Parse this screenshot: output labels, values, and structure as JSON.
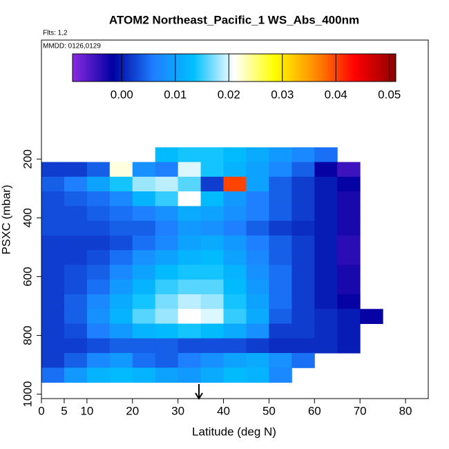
{
  "chart_data": {
    "type": "heatmap",
    "title": "ATOM2 Northeast_Pacific_1 WS_Abs_400nm",
    "subtitle": "Flts: 1,2",
    "annotation": "MMDD: 0126,0129",
    "x_label": "Latitude (deg N)",
    "y_label": "PSXC (mbar)",
    "xlim": [
      0,
      85
    ],
    "xticks": [
      0,
      5,
      10,
      20,
      30,
      40,
      50,
      60,
      70,
      80
    ],
    "ylim": [
      1015,
      -205
    ],
    "yticks": [
      200,
      400,
      600,
      800,
      1000
    ],
    "clim": [
      -0.0092,
      0.0512
    ],
    "cticks": [
      {
        "value": 0,
        "label": "0.00"
      },
      0.01,
      0.02,
      0.03,
      0.04,
      0.05
    ],
    "colorscale": [
      "#8a2be2",
      "#0000a0",
      "#1e7fff",
      "#00bfff",
      "#ffffff",
      "#ffff00",
      "#ff8c00",
      "#ff0000",
      "#8b0000"
    ],
    "xbins": [
      0,
      5,
      10,
      15,
      20,
      25,
      30,
      35,
      40,
      45,
      50,
      55,
      60,
      65,
      70,
      75
    ],
    "ybins": [
      160,
      210,
      260,
      310,
      360,
      410,
      460,
      510,
      560,
      610,
      660,
      710,
      760,
      810,
      860,
      910,
      960
    ],
    "z": [
      [
        null,
        null,
        null,
        null,
        null,
        0.013,
        0.014,
        0.014,
        0.013,
        0.011,
        0.009,
        0.007,
        0.005,
        null,
        null
      ],
      [
        0.002,
        0.002,
        0.004,
        0.022,
        0.008,
        0.006,
        0.02,
        0.014,
        0.012,
        0.01,
        0.007,
        0.004,
        -0.002,
        -0.005,
        null
      ],
      [
        0.004,
        0.006,
        0.01,
        0.014,
        0.018,
        0.019,
        0.016,
        0.002,
        0.04,
        0.01,
        0.004,
        0.002,
        0.0,
        -0.002,
        null
      ],
      [
        0.003,
        0.004,
        0.005,
        0.007,
        0.012,
        0.015,
        0.021,
        0.013,
        0.009,
        0.006,
        0.004,
        0.002,
        0.0,
        -0.003,
        null
      ],
      [
        0.003,
        0.003,
        0.004,
        0.005,
        0.006,
        0.008,
        0.011,
        0.01,
        0.008,
        0.006,
        0.004,
        0.002,
        0.0,
        -0.003,
        null
      ],
      [
        0.003,
        0.003,
        0.003,
        0.004,
        0.004,
        0.006,
        0.009,
        0.008,
        0.006,
        0.004,
        0.002,
        0.001,
        0.0,
        -0.003,
        null
      ],
      [
        0.002,
        0.002,
        0.002,
        0.003,
        0.005,
        0.007,
        0.01,
        0.011,
        0.009,
        0.006,
        0.004,
        0.002,
        0.0,
        -0.004,
        null
      ],
      [
        0.002,
        0.002,
        0.003,
        0.005,
        0.008,
        0.01,
        0.012,
        0.013,
        0.01,
        0.007,
        0.004,
        0.002,
        0.0,
        -0.004,
        null
      ],
      [
        0.002,
        0.003,
        0.004,
        0.007,
        0.01,
        0.013,
        0.014,
        0.014,
        0.012,
        0.008,
        0.005,
        0.002,
        0.0,
        -0.003,
        null
      ],
      [
        0.002,
        0.003,
        0.005,
        0.009,
        0.012,
        0.015,
        0.016,
        0.016,
        0.013,
        0.009,
        0.005,
        0.002,
        0.0,
        -0.003,
        null
      ],
      [
        0.002,
        0.004,
        0.007,
        0.011,
        0.014,
        0.017,
        0.019,
        0.018,
        0.014,
        0.01,
        0.005,
        0.002,
        0.0,
        -0.002,
        null
      ],
      [
        0.002,
        0.004,
        0.008,
        0.012,
        0.016,
        0.018,
        0.021,
        0.02,
        0.015,
        0.011,
        0.004,
        0.002,
        0.001,
        0.0,
        -0.002
      ],
      [
        0.002,
        0.003,
        0.006,
        0.009,
        0.012,
        0.013,
        0.014,
        0.013,
        0.011,
        0.008,
        0.002,
        0.002,
        0.001,
        0.0,
        null
      ],
      [
        0.002,
        0.002,
        0.003,
        0.004,
        0.004,
        0.004,
        0.003,
        0.003,
        0.003,
        0.002,
        0.001,
        0.001,
        0.001,
        0.0,
        null
      ],
      [
        0.002,
        0.004,
        0.007,
        0.009,
        0.005,
        0.004,
        0.006,
        0.008,
        0.01,
        0.011,
        0.008,
        0.005,
        null,
        null,
        null
      ],
      [
        0.005,
        0.009,
        0.012,
        0.013,
        0.012,
        0.01,
        0.009,
        0.011,
        0.013,
        0.012,
        0.007,
        null,
        null,
        null,
        null
      ]
    ]
  }
}
